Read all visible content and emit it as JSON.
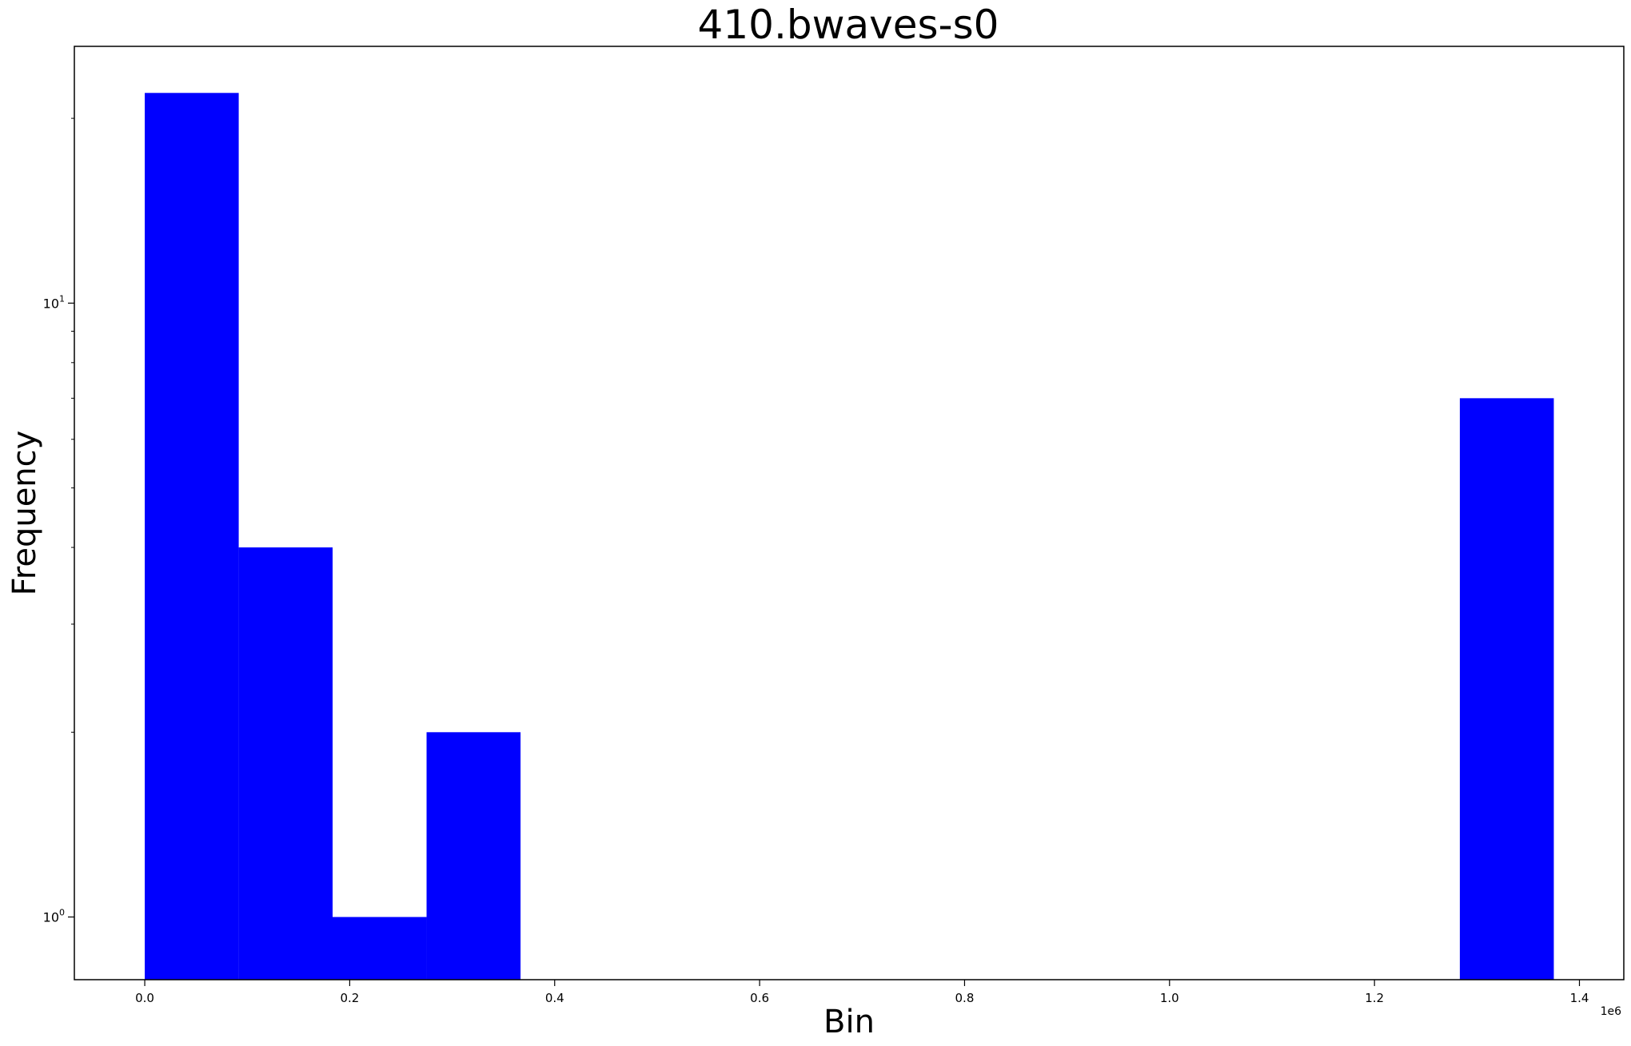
{
  "chart_data": {
    "type": "bar",
    "title": "410.bwaves-s0",
    "xlabel": "Bin",
    "ylabel": "Frequency",
    "x_offset_label": "1e6",
    "x_scale": "linear",
    "y_scale": "log",
    "grid": false,
    "legend": "none",
    "bar_color": "#0000ff",
    "xlim": [
      -0.0687,
      1.4433
    ],
    "ylim": [
      0.7905,
      26.2
    ],
    "x_ticks": [
      {
        "value": 0.0,
        "label": "0.0"
      },
      {
        "value": 0.2,
        "label": "0.2"
      },
      {
        "value": 0.4,
        "label": "0.4"
      },
      {
        "value": 0.6,
        "label": "0.6"
      },
      {
        "value": 0.8,
        "label": "0.8"
      },
      {
        "value": 1.0,
        "label": "1.0"
      },
      {
        "value": 1.2,
        "label": "1.2"
      },
      {
        "value": 1.4,
        "label": "1.4"
      }
    ],
    "y_ticks": [
      {
        "value": 1,
        "base": "10",
        "exp": "0"
      },
      {
        "value": 10,
        "base": "10",
        "exp": "1"
      }
    ],
    "y_minor_ticks": [
      2,
      3,
      4,
      5,
      6,
      7,
      8,
      9,
      20
    ],
    "bins": [
      {
        "start": 0.0,
        "end": 0.0917,
        "count": 22
      },
      {
        "start": 0.0917,
        "end": 0.1833,
        "count": 4
      },
      {
        "start": 0.1833,
        "end": 0.275,
        "count": 1
      },
      {
        "start": 0.275,
        "end": 0.3667,
        "count": 2
      },
      {
        "start": 1.2833,
        "end": 1.375,
        "count": 7
      }
    ]
  }
}
